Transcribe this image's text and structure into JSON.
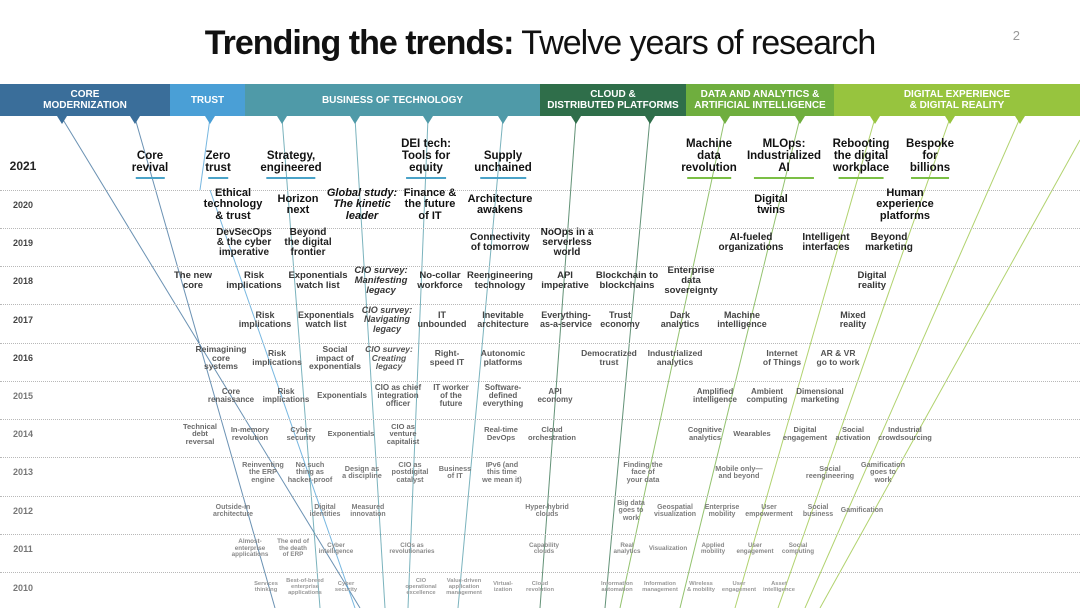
{
  "title": {
    "bold": "Trending the trends:",
    "light": "Twelve years of research"
  },
  "page_number": "2",
  "macro_forces": [
    {
      "label": "CORE\nMODERNIZATION",
      "color": "#3a6e9a"
    },
    {
      "label": "TRUST",
      "color": "#4a9fd6"
    },
    {
      "label": "BUSINESS OF TECHNOLOGY",
      "color": "#4f9aa8"
    },
    {
      "label": "CLOUD &\nDISTRIBUTED PLATFORMS",
      "color": "#2f6e4a"
    },
    {
      "label": "DATA AND ANALYTICS &\nARTIFICIAL INTELLIGENCE",
      "color": "#6fae3e"
    },
    {
      "label": "DIGITAL EXPERIENCE\n& DIGITAL REALITY",
      "color": "#97c43e"
    }
  ],
  "years": [
    "2021",
    "2020",
    "2019",
    "2018",
    "2017",
    "2016",
    "2015",
    "2014",
    "2013",
    "2012",
    "2011",
    "2010"
  ],
  "trends_2021": [
    {
      "text": "Core\nrevival",
      "color": "#4aa3c8"
    },
    {
      "text": "Zero\ntrust",
      "color": "#4aa3c8"
    },
    {
      "text": "Strategy,\nengineered",
      "color": "#4aa3c8"
    },
    {
      "text": "DEI tech:\nTools for\nequity",
      "color": "#4aa3c8"
    },
    {
      "text": "Supply\nunchained",
      "color": "#4aa3c8"
    },
    {
      "text": "Machine\ndata\nrevolution",
      "color": "#7bbf45"
    },
    {
      "text": "MLOps:\nIndustrialized\nAI",
      "color": "#7bbf45"
    },
    {
      "text": "Rebooting\nthe digital\nworkplace",
      "color": "#7bbf45"
    },
    {
      "text": "Bespoke\nfor\nbillions",
      "color": "#7bbf45"
    }
  ],
  "trends": [
    {
      "text": "Ethical\ntechnology\n& trust",
      "year": "2020"
    },
    {
      "text": "Horizon\nnext",
      "year": "2020"
    },
    {
      "text": "Global study:\nThe kinetic\nleader",
      "year": "2020",
      "italic": true
    },
    {
      "text": "Finance &\nthe future\nof IT",
      "year": "2020"
    },
    {
      "text": "Architecture\nawakens",
      "year": "2020"
    },
    {
      "text": "Digital\ntwins",
      "year": "2020"
    },
    {
      "text": "Human\nexperience\nplatforms",
      "year": "2020"
    },
    {
      "text": "DevSecOps\n& the cyber\nimperative",
      "year": "2019"
    },
    {
      "text": "Beyond\nthe digital\nfrontier",
      "year": "2019"
    },
    {
      "text": "Connectivity\nof tomorrow",
      "year": "2019"
    },
    {
      "text": "NoOps in a\nserverless\nworld",
      "year": "2019"
    },
    {
      "text": "AI-fueled\norganizations",
      "year": "2019"
    },
    {
      "text": "Intelligent\ninterfaces",
      "year": "2019"
    },
    {
      "text": "Beyond\nmarketing",
      "year": "2019"
    },
    {
      "text": "The new\ncore",
      "year": "2018"
    },
    {
      "text": "Risk\nimplications",
      "year": "2018"
    },
    {
      "text": "Exponentials\nwatch list",
      "year": "2018"
    },
    {
      "text": "CIO survey:\nManifesting\nlegacy",
      "year": "2018",
      "italic": true
    },
    {
      "text": "No-collar\nworkforce",
      "year": "2018"
    },
    {
      "text": "Reengineering\ntechnology",
      "year": "2018"
    },
    {
      "text": "API\nimperative",
      "year": "2018"
    },
    {
      "text": "Blockchain to\nblockchains",
      "year": "2018"
    },
    {
      "text": "Enterprise\ndata\nsovereignty",
      "year": "2018"
    },
    {
      "text": "Digital\nreality",
      "year": "2018"
    },
    {
      "text": "Risk\nimplications",
      "year": "2017"
    },
    {
      "text": "Exponentials\nwatch list",
      "year": "2017"
    },
    {
      "text": "CIO survey:\nNavigating\nlegacy",
      "year": "2017",
      "italic": true
    },
    {
      "text": "IT\nunbounded",
      "year": "2017"
    },
    {
      "text": "Inevitable\narchitecture",
      "year": "2017"
    },
    {
      "text": "Everything-\nas-a-service",
      "year": "2017"
    },
    {
      "text": "Trust\neconomy",
      "year": "2017"
    },
    {
      "text": "Dark\nanalytics",
      "year": "2017"
    },
    {
      "text": "Machine\nintelligence",
      "year": "2017"
    },
    {
      "text": "Mixed\nreality",
      "year": "2017"
    },
    {
      "text": "Reimagining\ncore\nsystems",
      "year": "2016"
    },
    {
      "text": "Risk\nimplications",
      "year": "2016"
    },
    {
      "text": "Social\nimpact of\nexponentials",
      "year": "2016"
    },
    {
      "text": "CIO survey:\nCreating\nlegacy",
      "year": "2016",
      "italic": true
    },
    {
      "text": "Right-\nspeed IT",
      "year": "2016"
    },
    {
      "text": "Autonomic\nplatforms",
      "year": "2016"
    },
    {
      "text": "Democratized\ntrust",
      "year": "2016"
    },
    {
      "text": "Industrialized\nanalytics",
      "year": "2016"
    },
    {
      "text": "Internet\nof Things",
      "year": "2016"
    },
    {
      "text": "AR & VR\ngo to work",
      "year": "2016"
    },
    {
      "text": "Core\nrenaissance",
      "year": "2015"
    },
    {
      "text": "Risk\nimplications",
      "year": "2015"
    },
    {
      "text": "Exponentials",
      "year": "2015"
    },
    {
      "text": "CIO as chief\nintegration\nofficer",
      "year": "2015"
    },
    {
      "text": "IT worker\nof the\nfuture",
      "year": "2015"
    },
    {
      "text": "Software-\ndefined\neverything",
      "year": "2015"
    },
    {
      "text": "API\neconomy",
      "year": "2015"
    },
    {
      "text": "Amplified\nintelligence",
      "year": "2015"
    },
    {
      "text": "Ambient\ncomputing",
      "year": "2015"
    },
    {
      "text": "Dimensional\nmarketing",
      "year": "2015"
    },
    {
      "text": "Technical\ndebt\nreversal",
      "year": "2014"
    },
    {
      "text": "In-memory\nrevolution",
      "year": "2014"
    },
    {
      "text": "Cyber\nsecurity",
      "year": "2014"
    },
    {
      "text": "Exponentials",
      "year": "2014"
    },
    {
      "text": "CIO as\nventure\ncapitalist",
      "year": "2014"
    },
    {
      "text": "Real-time\nDevOps",
      "year": "2014"
    },
    {
      "text": "Cloud\norchestration",
      "year": "2014"
    },
    {
      "text": "Cognitive\nanalytics",
      "year": "2014"
    },
    {
      "text": "Wearables",
      "year": "2014"
    },
    {
      "text": "Digital\nengagement",
      "year": "2014"
    },
    {
      "text": "Social\nactivation",
      "year": "2014"
    },
    {
      "text": "Industrial\ncrowdsourcing",
      "year": "2014"
    },
    {
      "text": "Reinventing\nthe ERP\nengine",
      "year": "2013"
    },
    {
      "text": "No such\nthing as\nhacker-proof",
      "year": "2013"
    },
    {
      "text": "Design as\na discipline",
      "year": "2013"
    },
    {
      "text": "CIO as\npostdigital\ncatalyst",
      "year": "2013"
    },
    {
      "text": "Business\nof IT",
      "year": "2013"
    },
    {
      "text": "IPv6 (and\nthis time\nwe mean it)",
      "year": "2013"
    },
    {
      "text": "Finding the\nface of\nyour data",
      "year": "2013"
    },
    {
      "text": "Mobile only—\nand beyond",
      "year": "2013"
    },
    {
      "text": "Social\nreengineering",
      "year": "2013"
    },
    {
      "text": "Gamification\ngoes to\nwork",
      "year": "2013"
    },
    {
      "text": "Outside-in\narchitecture",
      "year": "2012"
    },
    {
      "text": "Digital\nidentities",
      "year": "2012"
    },
    {
      "text": "Measured\ninnovation",
      "year": "2012"
    },
    {
      "text": "Hyper-hybrid\nclouds",
      "year": "2012"
    },
    {
      "text": "Big data\ngoes to\nwork",
      "year": "2012"
    },
    {
      "text": "Geospatial\nvisualization",
      "year": "2012"
    },
    {
      "text": "Enterprise\nmobility",
      "year": "2012"
    },
    {
      "text": "User\nempowerment",
      "year": "2012"
    },
    {
      "text": "Social\nbusiness",
      "year": "2012"
    },
    {
      "text": "Gamification",
      "year": "2012"
    },
    {
      "text": "Almost-\nenterprise\napplications",
      "year": "2011"
    },
    {
      "text": "The end of\nthe death\nof ERP",
      "year": "2011"
    },
    {
      "text": "Cyber\nintelligence",
      "year": "2011"
    },
    {
      "text": "CIOs as\nrevolutionaries",
      "year": "2011"
    },
    {
      "text": "Capability\nclouds",
      "year": "2011"
    },
    {
      "text": "Real\nanalytics",
      "year": "2011"
    },
    {
      "text": "Visualization",
      "year": "2011"
    },
    {
      "text": "Applied\nmobility",
      "year": "2011"
    },
    {
      "text": "User\nengagement",
      "year": "2011"
    },
    {
      "text": "Social\ncomputing",
      "year": "2011"
    },
    {
      "text": "Services\nthinking",
      "year": "2010"
    },
    {
      "text": "Best-of-breed\nenterprise\napplications",
      "year": "2010"
    },
    {
      "text": "Cyber\nsecurity",
      "year": "2010"
    },
    {
      "text": "CIO\noperational\nexcellence",
      "year": "2010"
    },
    {
      "text": "Value-driven\napplication\nmanagement",
      "year": "2010"
    },
    {
      "text": "Virtual-\nization",
      "year": "2010"
    },
    {
      "text": "Cloud\nrevolution",
      "year": "2010"
    },
    {
      "text": "Information\nautomation",
      "year": "2010"
    },
    {
      "text": "Information\nmanagement",
      "year": "2010"
    },
    {
      "text": "Wireless\n& mobility",
      "year": "2010"
    },
    {
      "text": "User\nengagement",
      "year": "2010"
    },
    {
      "text": "Asset\nintelligence",
      "year": "2010"
    }
  ]
}
